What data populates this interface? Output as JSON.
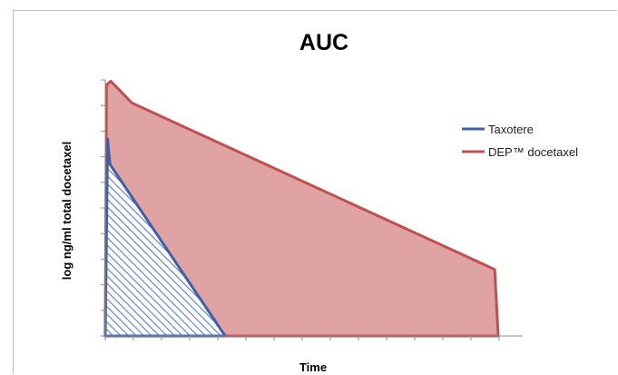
{
  "chart_data": {
    "type": "area",
    "title": "AUC",
    "xlabel": "Time",
    "ylabel": "log ng/ml total docetaxel",
    "xlim": [
      0,
      100
    ],
    "ylim": [
      0,
      100
    ],
    "grid": false,
    "legend_position": "right",
    "series": [
      {
        "name": "Taxotere",
        "color": "#3f5fa8",
        "fill": "hatched-blue",
        "x": [
          0,
          0.6,
          1.2,
          30.5,
          0
        ],
        "y": [
          0,
          77,
          67,
          0,
          0
        ]
      },
      {
        "name": "DEP™ docetaxel",
        "color": "#c0504d",
        "fill": "#dfa3a3",
        "x": [
          0,
          0.3,
          1.4,
          6.8,
          99.1,
          100,
          0
        ],
        "y": [
          0,
          98,
          99.5,
          91,
          26,
          0,
          0
        ]
      }
    ]
  }
}
